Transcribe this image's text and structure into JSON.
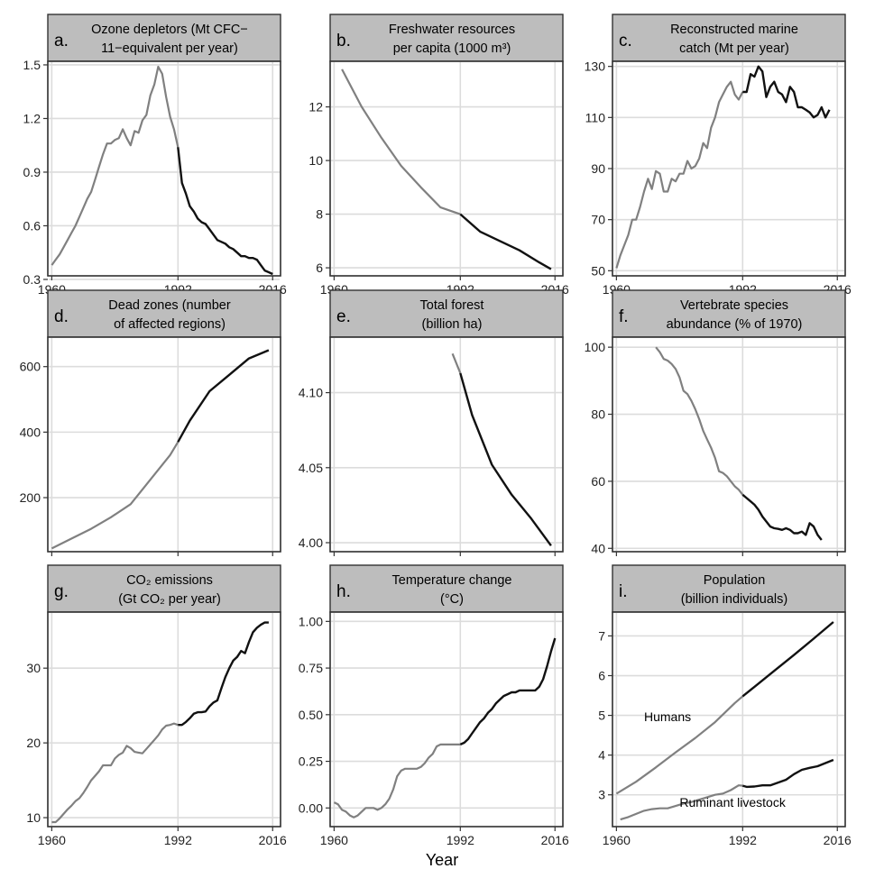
{
  "x_axis_title": "Year",
  "colors": {
    "historical": "#808080",
    "recent": "#111111",
    "strip": "#bdbdbd",
    "grid": "#dcdcdc"
  },
  "chart_data": [
    {
      "id": "a",
      "type": "line",
      "letter": "a.",
      "title_lines": [
        "Ozone depletors (Mt CFC−",
        "11−equivalent per year)"
      ],
      "xlim": [
        1959,
        2018
      ],
      "ylim": [
        0.32,
        1.52
      ],
      "xticks": [
        1960,
        1992,
        2016
      ],
      "xtick_labels": [
        "1960",
        "1992",
        "2016"
      ],
      "yticks": [
        0.3,
        0.6,
        0.9,
        1.2,
        1.5
      ],
      "ytick_labels": [
        "0.3",
        "0.6",
        "0.9",
        "1.2",
        "1.5"
      ],
      "split_year": 1992,
      "x": [
        1960,
        1961,
        1962,
        1963,
        1964,
        1965,
        1966,
        1967,
        1968,
        1969,
        1970,
        1971,
        1972,
        1973,
        1974,
        1975,
        1976,
        1977,
        1978,
        1979,
        1980,
        1981,
        1982,
        1983,
        1984,
        1985,
        1986,
        1987,
        1988,
        1989,
        1990,
        1991,
        1992,
        1993,
        1994,
        1995,
        1996,
        1997,
        1998,
        1999,
        2000,
        2001,
        2002,
        2003,
        2004,
        2005,
        2006,
        2007,
        2008,
        2009,
        2010,
        2011,
        2012,
        2013,
        2014,
        2015,
        2016
      ],
      "y": [
        0.38,
        0.41,
        0.44,
        0.48,
        0.52,
        0.56,
        0.6,
        0.65,
        0.7,
        0.75,
        0.79,
        0.86,
        0.93,
        1.0,
        1.06,
        1.06,
        1.08,
        1.09,
        1.14,
        1.09,
        1.05,
        1.13,
        1.12,
        1.19,
        1.22,
        1.33,
        1.39,
        1.49,
        1.45,
        1.32,
        1.21,
        1.14,
        1.04,
        0.84,
        0.78,
        0.71,
        0.68,
        0.64,
        0.62,
        0.61,
        0.58,
        0.55,
        0.52,
        0.51,
        0.5,
        0.48,
        0.47,
        0.45,
        0.43,
        0.43,
        0.42,
        0.42,
        0.41,
        0.38,
        0.35,
        0.34,
        0.33
      ],
      "annotations": []
    },
    {
      "id": "b",
      "type": "line",
      "letter": "b.",
      "title_lines": [
        "Freshwater resources",
        "per capita (1000 m³)"
      ],
      "xlim": [
        1959,
        2018
      ],
      "ylim": [
        5.7,
        13.7
      ],
      "xticks": [
        1960,
        1992,
        2016
      ],
      "xtick_labels": [
        "1960",
        "1992",
        "2016"
      ],
      "yticks": [
        6,
        8,
        10,
        12
      ],
      "ytick_labels": [
        "6",
        "8",
        "10",
        "12"
      ],
      "split_year": 1992,
      "x": [
        1962,
        1967,
        1972,
        1977,
        1982,
        1987,
        1992,
        1997,
        2002,
        2007,
        2012,
        2015
      ],
      "y": [
        13.4,
        12.0,
        10.85,
        9.8,
        9.0,
        8.25,
        8.0,
        7.35,
        7.0,
        6.65,
        6.2,
        5.95
      ],
      "annotations": []
    },
    {
      "id": "c",
      "type": "line",
      "letter": "c.",
      "title_lines": [
        "Reconstructed marine",
        "catch (Mt per year)"
      ],
      "xlim": [
        1959,
        2018
      ],
      "ylim": [
        48,
        132
      ],
      "xticks": [
        1960,
        1992,
        2016
      ],
      "xtick_labels": [
        "1960",
        "1992",
        "2016"
      ],
      "yticks": [
        50,
        70,
        90,
        110,
        130
      ],
      "ytick_labels": [
        "50",
        "70",
        "90",
        "110",
        "130"
      ],
      "split_year": 1992,
      "x": [
        1960,
        1961,
        1962,
        1963,
        1964,
        1965,
        1966,
        1967,
        1968,
        1969,
        1970,
        1971,
        1972,
        1973,
        1974,
        1975,
        1976,
        1977,
        1978,
        1979,
        1980,
        1981,
        1982,
        1983,
        1984,
        1985,
        1986,
        1987,
        1988,
        1989,
        1990,
        1991,
        1992,
        1993,
        1994,
        1995,
        1996,
        1997,
        1998,
        1999,
        2000,
        2001,
        2002,
        2003,
        2004,
        2005,
        2006,
        2007,
        2008,
        2009,
        2010,
        2011,
        2012,
        2013,
        2014
      ],
      "y": [
        51,
        56,
        60,
        64,
        70,
        70,
        75,
        81,
        86,
        82,
        89,
        88,
        81,
        81,
        86,
        85,
        88,
        88,
        93,
        90,
        91,
        94,
        100,
        98,
        106,
        110,
        116,
        119,
        122,
        124,
        119,
        117,
        120,
        120,
        127,
        126,
        130,
        128,
        118,
        122,
        124,
        120,
        119,
        116,
        122,
        120,
        114,
        114,
        113,
        112,
        110,
        111,
        114,
        110,
        113
      ],
      "annotations": []
    },
    {
      "id": "d",
      "type": "line",
      "letter": "d.",
      "title_lines": [
        "Dead zones (number",
        "of affected regions)"
      ],
      "xlim": [
        1959,
        2018
      ],
      "ylim": [
        35,
        690
      ],
      "xticks": [
        1960,
        1992,
        2016
      ],
      "xtick_labels": [],
      "yticks": [
        200,
        400,
        600
      ],
      "ytick_labels": [
        "200",
        "400",
        "600"
      ],
      "split_year": 1992,
      "x": [
        1960,
        1965,
        1970,
        1975,
        1980,
        1985,
        1990,
        1992,
        1995,
        2000,
        2005,
        2010,
        2015
      ],
      "y": [
        45,
        75,
        105,
        140,
        180,
        255,
        330,
        370,
        435,
        525,
        575,
        625,
        650
      ],
      "annotations": []
    },
    {
      "id": "e",
      "type": "line",
      "letter": "e.",
      "title_lines": [
        "Total forest",
        "(billion ha)"
      ],
      "xlim": [
        1959,
        2018
      ],
      "ylim": [
        3.994,
        4.137
      ],
      "xticks": [
        1960,
        1992,
        2016
      ],
      "xtick_labels": [],
      "yticks": [
        4.0,
        4.05,
        4.1
      ],
      "ytick_labels": [
        "4.00",
        "4.05",
        "4.10"
      ],
      "split_year": 1992,
      "x": [
        1990,
        1992,
        1995,
        2000,
        2005,
        2010,
        2015
      ],
      "y": [
        4.126,
        4.113,
        4.085,
        4.052,
        4.032,
        4.016,
        3.998
      ],
      "annotations": []
    },
    {
      "id": "f",
      "type": "line",
      "letter": "f.",
      "title_lines": [
        "Vertebrate species",
        "abundance (% of 1970)"
      ],
      "xlim": [
        1959,
        2018
      ],
      "ylim": [
        39,
        103
      ],
      "xticks": [
        1960,
        1992,
        2016
      ],
      "xtick_labels": [],
      "yticks": [
        40,
        60,
        80,
        100
      ],
      "ytick_labels": [
        "40",
        "60",
        "80",
        "100"
      ],
      "split_year": 1992,
      "x": [
        1970,
        1971,
        1972,
        1973,
        1974,
        1975,
        1976,
        1977,
        1978,
        1979,
        1980,
        1981,
        1982,
        1983,
        1984,
        1985,
        1986,
        1987,
        1988,
        1989,
        1990,
        1991,
        1992,
        1993,
        1994,
        1995,
        1996,
        1997,
        1998,
        1999,
        2000,
        2001,
        2002,
        2003,
        2004,
        2005,
        2006,
        2007,
        2008,
        2009,
        2010,
        2011,
        2012
      ],
      "y": [
        100,
        98.5,
        96.5,
        96,
        95,
        93.5,
        91,
        87,
        86,
        84,
        81.5,
        78.5,
        75,
        72.5,
        70,
        67,
        63,
        62.5,
        61.5,
        60,
        58.5,
        57.5,
        56,
        55,
        54,
        53,
        51.5,
        49.5,
        48,
        46.5,
        46,
        45.8,
        45.5,
        46,
        45.5,
        44.5,
        44.5,
        45,
        44,
        47.5,
        46.5,
        44,
        42.5
      ],
      "annotations": []
    },
    {
      "id": "g",
      "type": "line",
      "letter": "g.",
      "title_lines": [
        "CO₂ emissions",
        "(Gt CO₂ per year)"
      ],
      "xlim": [
        1959,
        2018
      ],
      "ylim": [
        8.8,
        37.5
      ],
      "xticks": [
        1960,
        1992,
        2016
      ],
      "xtick_labels": [
        "1960",
        "1992",
        "2016"
      ],
      "yticks": [
        10,
        20,
        30
      ],
      "ytick_labels": [
        "10",
        "20",
        "30"
      ],
      "split_year": 1992,
      "x": [
        1960,
        1961,
        1962,
        1963,
        1964,
        1965,
        1966,
        1967,
        1968,
        1969,
        1970,
        1971,
        1972,
        1973,
        1974,
        1975,
        1976,
        1977,
        1978,
        1979,
        1980,
        1981,
        1982,
        1983,
        1984,
        1985,
        1986,
        1987,
        1988,
        1989,
        1990,
        1991,
        1992,
        1993,
        1994,
        1995,
        1996,
        1997,
        1998,
        1999,
        2000,
        2001,
        2002,
        2003,
        2004,
        2005,
        2006,
        2007,
        2008,
        2009,
        2010,
        2011,
        2012,
        2013,
        2014,
        2015
      ],
      "y": [
        9.4,
        9.4,
        9.9,
        10.5,
        11.1,
        11.6,
        12.2,
        12.6,
        13.3,
        14.1,
        15.0,
        15.6,
        16.2,
        17.0,
        17.0,
        17.0,
        17.9,
        18.4,
        18.7,
        19.6,
        19.3,
        18.8,
        18.7,
        18.6,
        19.2,
        19.8,
        20.4,
        21.0,
        21.8,
        22.3,
        22.4,
        22.6,
        22.4,
        22.4,
        22.8,
        23.3,
        23.9,
        24.1,
        24.1,
        24.2,
        24.9,
        25.4,
        25.7,
        27.3,
        28.8,
        30.0,
        31.0,
        31.5,
        32.3,
        32.0,
        33.5,
        34.8,
        35.4,
        35.8,
        36.1,
        36.1
      ],
      "annotations": []
    },
    {
      "id": "h",
      "type": "line",
      "letter": "h.",
      "title_lines": [
        "Temperature change",
        "(°C)"
      ],
      "xlim": [
        1959,
        2018
      ],
      "ylim": [
        -0.1,
        1.05
      ],
      "xticks": [
        1960,
        1992,
        2016
      ],
      "xtick_labels": [
        "1960",
        "1992",
        "2016"
      ],
      "yticks": [
        0.0,
        0.25,
        0.5,
        0.75,
        1.0
      ],
      "ytick_labels": [
        "0.00",
        "0.25",
        "0.50",
        "0.75",
        "1.00"
      ],
      "split_year": 1992,
      "x": [
        1960,
        1961,
        1962,
        1963,
        1964,
        1965,
        1966,
        1967,
        1968,
        1969,
        1970,
        1971,
        1972,
        1973,
        1974,
        1975,
        1976,
        1977,
        1978,
        1979,
        1980,
        1981,
        1982,
        1983,
        1984,
        1985,
        1986,
        1987,
        1988,
        1989,
        1990,
        1991,
        1992,
        1993,
        1994,
        1995,
        1996,
        1997,
        1998,
        1999,
        2000,
        2001,
        2002,
        2003,
        2004,
        2005,
        2006,
        2007,
        2008,
        2009,
        2010,
        2011,
        2012,
        2013,
        2014,
        2015,
        2016
      ],
      "y": [
        0.03,
        0.02,
        -0.01,
        -0.02,
        -0.04,
        -0.05,
        -0.04,
        -0.02,
        0.0,
        0.0,
        0.0,
        -0.01,
        0.0,
        0.02,
        0.05,
        0.1,
        0.17,
        0.2,
        0.21,
        0.21,
        0.21,
        0.21,
        0.22,
        0.24,
        0.27,
        0.29,
        0.33,
        0.34,
        0.34,
        0.34,
        0.34,
        0.34,
        0.34,
        0.35,
        0.37,
        0.4,
        0.43,
        0.46,
        0.48,
        0.51,
        0.53,
        0.56,
        0.58,
        0.6,
        0.61,
        0.62,
        0.62,
        0.63,
        0.63,
        0.63,
        0.63,
        0.63,
        0.65,
        0.69,
        0.76,
        0.84,
        0.91
      ],
      "annotations": []
    },
    {
      "id": "i",
      "type": "line",
      "letter": "i.",
      "title_lines": [
        "Population",
        "(billion individuals)"
      ],
      "xlim": [
        1959,
        2018
      ],
      "ylim": [
        2.2,
        7.6
      ],
      "xticks": [
        1960,
        1992,
        2016
      ],
      "xtick_labels": [
        "1960",
        "1992",
        "2016"
      ],
      "yticks": [
        3,
        4,
        5,
        6,
        7
      ],
      "ytick_labels": [
        "3",
        "4",
        "5",
        "6",
        "7"
      ],
      "split_year": 1992,
      "series": [
        {
          "name": "Humans",
          "x": [
            1960,
            1965,
            1970,
            1975,
            1980,
            1985,
            1990,
            1992,
            1995,
            2000,
            2005,
            2010,
            2015
          ],
          "y": [
            3.03,
            3.33,
            3.69,
            4.07,
            4.43,
            4.83,
            5.31,
            5.48,
            5.72,
            6.12,
            6.52,
            6.93,
            7.35
          ]
        },
        {
          "name": "Ruminant livestock",
          "x": [
            1961,
            1963,
            1965,
            1967,
            1969,
            1971,
            1973,
            1975,
            1977,
            1979,
            1981,
            1983,
            1985,
            1987,
            1989,
            1991,
            1992,
            1993,
            1995,
            1997,
            1999,
            2001,
            2003,
            2005,
            2007,
            2009,
            2011,
            2013,
            2015
          ],
          "y": [
            2.38,
            2.44,
            2.52,
            2.6,
            2.64,
            2.66,
            2.66,
            2.72,
            2.78,
            2.82,
            2.88,
            2.94,
            3.0,
            3.03,
            3.12,
            3.24,
            3.23,
            3.2,
            3.21,
            3.24,
            3.24,
            3.31,
            3.38,
            3.52,
            3.63,
            3.68,
            3.72,
            3.8,
            3.88
          ]
        }
      ],
      "annotations": [
        {
          "text": "Humans",
          "x": 1967,
          "y": 4.85
        },
        {
          "text": "Ruminant livestock",
          "x": 1976,
          "y": 2.7
        }
      ]
    }
  ]
}
